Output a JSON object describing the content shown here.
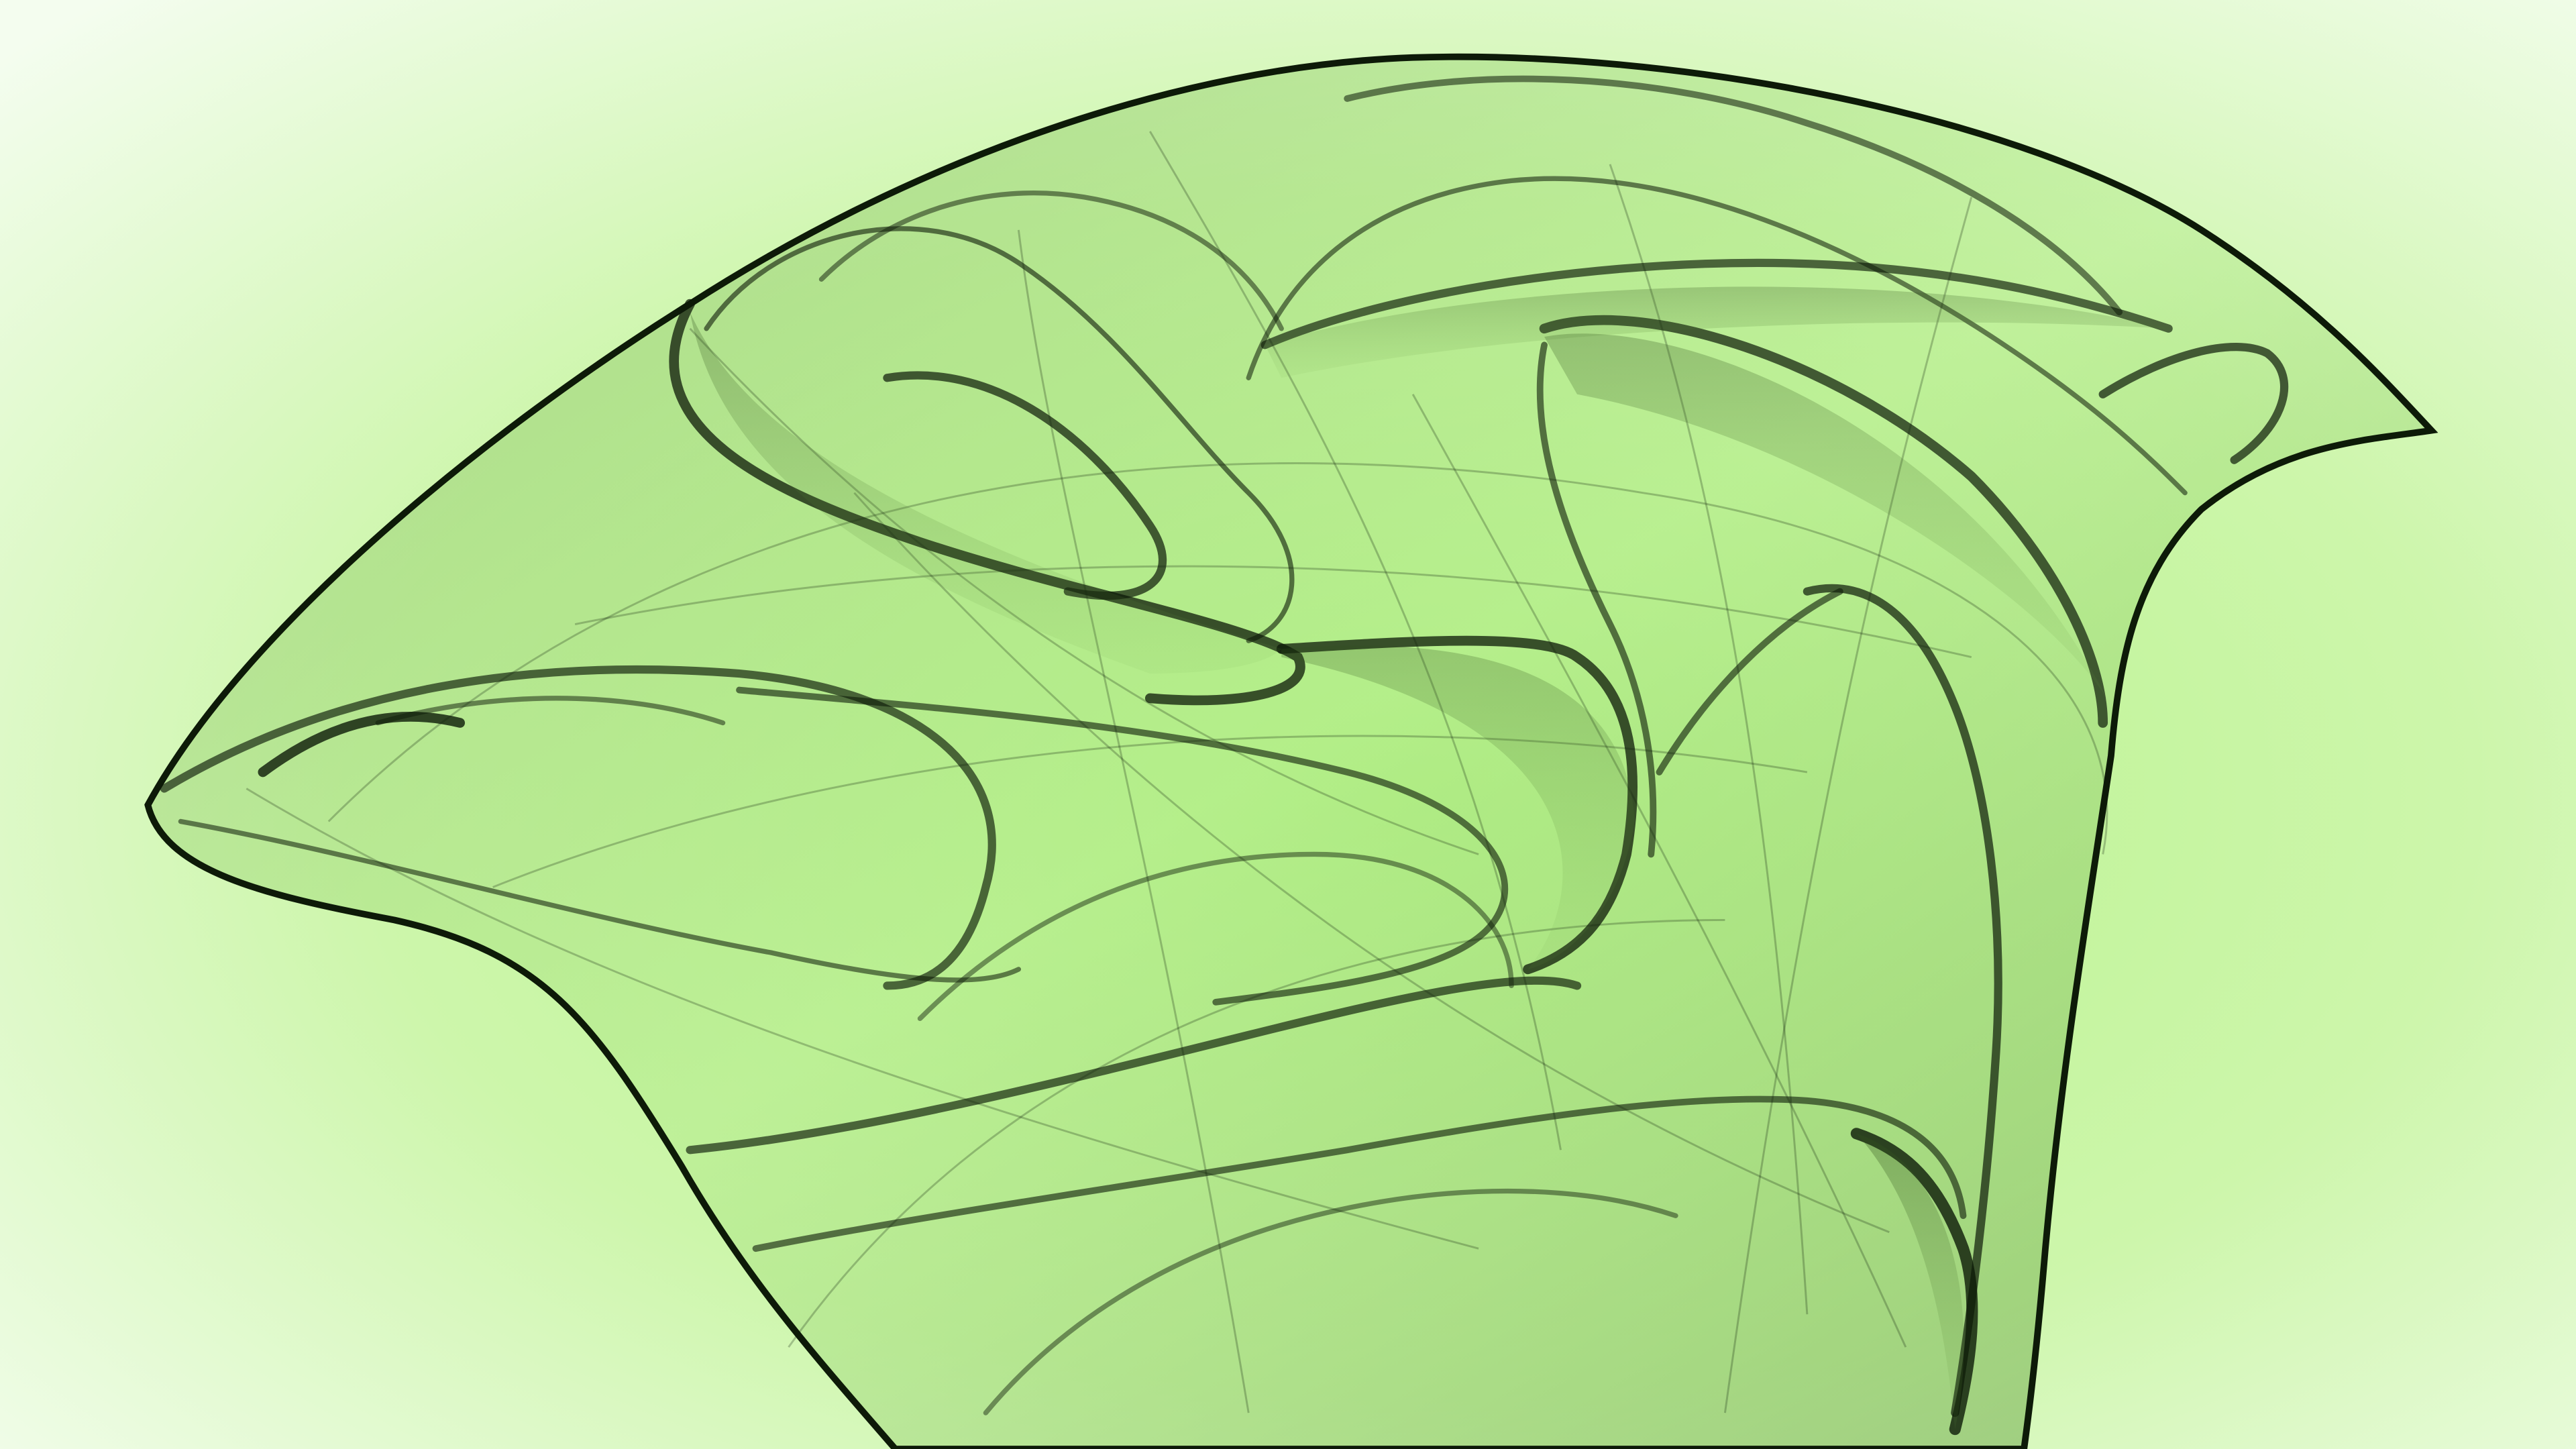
{
  "image": {
    "subject": "green-translucent-strange-attractor-fractal",
    "colors": {
      "bg_center": "#b6f28a",
      "bg_mid": "#d4f8b8",
      "bg_edge": "#f4fdef",
      "fill_light": "#a9e77e",
      "fill_dark": "#3f6b25",
      "stroke": "#0d1a08"
    }
  }
}
